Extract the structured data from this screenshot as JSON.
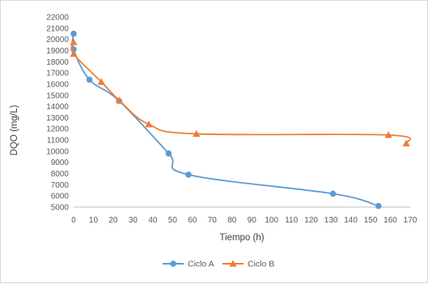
{
  "chart_data": {
    "type": "line",
    "title": "",
    "xlabel": "Tiempo (h)",
    "ylabel": "DQO (mg/L)",
    "xlim": [
      0,
      170
    ],
    "ylim": [
      5000,
      22000
    ],
    "x_ticks": [
      0,
      10,
      20,
      30,
      40,
      50,
      60,
      70,
      80,
      90,
      100,
      110,
      120,
      130,
      140,
      150,
      160,
      170
    ],
    "y_ticks": [
      5000,
      6000,
      7000,
      8000,
      9000,
      10000,
      11000,
      12000,
      13000,
      14000,
      15000,
      16000,
      17000,
      18000,
      19000,
      20000,
      21000,
      22000
    ],
    "grid": false,
    "legend_position": "bottom",
    "series": [
      {
        "name": "Ciclo A",
        "color": "#5b9bd5",
        "marker": "circle",
        "x": [
          0,
          0,
          8,
          23,
          48,
          58,
          131,
          154
        ],
        "y": [
          20500,
          19100,
          16400,
          14500,
          9800,
          7900,
          6200,
          5100
        ]
      },
      {
        "name": "Ciclo B",
        "color": "#ed7d31",
        "marker": "triangle",
        "x": [
          0,
          0,
          14,
          23,
          38,
          62,
          159,
          168
        ],
        "y": [
          19750,
          18700,
          16200,
          14550,
          12400,
          11550,
          11450,
          10700
        ]
      }
    ]
  }
}
